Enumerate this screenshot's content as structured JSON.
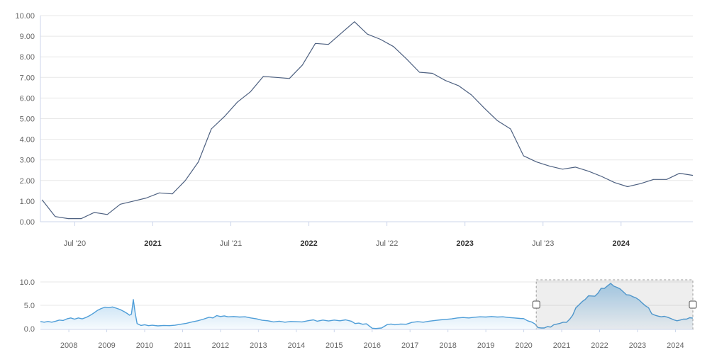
{
  "chart_data": [
    {
      "id": "main",
      "type": "line",
      "title": "",
      "line_color": "#4d6080",
      "line_width": 1.2,
      "grid": true,
      "grid_color": "#e7e7e7",
      "axis_color": "#ccd6eb",
      "label_color": "#666666",
      "label_bold_color": "#333333",
      "ylim": [
        0,
        10
      ],
      "xlim": [
        2020.28,
        2024.46
      ],
      "y_ticks": [
        {
          "v": 0,
          "label": "0.00"
        },
        {
          "v": 1,
          "label": "1.00"
        },
        {
          "v": 2,
          "label": "2.00"
        },
        {
          "v": 3,
          "label": "3.00"
        },
        {
          "v": 4,
          "label": "4.00"
        },
        {
          "v": 5,
          "label": "5.00"
        },
        {
          "v": 6,
          "label": "6.00"
        },
        {
          "v": 7,
          "label": "7.00"
        },
        {
          "v": 8,
          "label": "8.00"
        },
        {
          "v": 9,
          "label": "9.00"
        },
        {
          "v": 10,
          "label": "10.00"
        }
      ],
      "x_ticks": [
        {
          "x": 2020.5,
          "label": "Jul '20",
          "bold": false
        },
        {
          "x": 2021.0,
          "label": "2021",
          "bold": true
        },
        {
          "x": 2021.5,
          "label": "Jul '21",
          "bold": false
        },
        {
          "x": 2022.0,
          "label": "2022",
          "bold": true
        },
        {
          "x": 2022.5,
          "label": "Jul '22",
          "bold": false
        },
        {
          "x": 2023.0,
          "label": "2023",
          "bold": true
        },
        {
          "x": 2023.5,
          "label": "Jul '23",
          "bold": false
        },
        {
          "x": 2024.0,
          "label": "2024",
          "bold": true
        }
      ],
      "x_start": 2020.2917,
      "x_step": 0.083333,
      "values": [
        1.05,
        0.25,
        0.15,
        0.15,
        0.45,
        0.35,
        0.85,
        1.0,
        1.15,
        1.4,
        1.35,
        2.0,
        2.9,
        4.5,
        5.1,
        5.8,
        6.3,
        7.05,
        7.0,
        6.95,
        7.6,
        8.65,
        8.6,
        9.15,
        9.7,
        9.1,
        8.85,
        8.5,
        7.9,
        7.25,
        7.2,
        6.85,
        6.6,
        6.15,
        5.5,
        4.9,
        4.5,
        3.2,
        2.9,
        2.7,
        2.55,
        2.65,
        2.45,
        2.2,
        1.9,
        1.7,
        1.85,
        2.05,
        2.05,
        2.35,
        2.25
      ]
    },
    {
      "id": "navigator",
      "type": "area",
      "line_color": "#4f9ed8",
      "line_width": 1.4,
      "fill_top": "#a9d1ee",
      "fill_bottom": "#f7fbfe",
      "grid_color": "#e7e7e7",
      "axis_color": "#ccd6eb",
      "label_color": "#666666",
      "ylim": [
        0,
        10
      ],
      "xlim": [
        2007.25,
        2024.46
      ],
      "y_ticks": [
        {
          "v": 0,
          "label": "0.0"
        },
        {
          "v": 5,
          "label": "5.0"
        },
        {
          "v": 10,
          "label": "10.0"
        }
      ],
      "x_ticks": [
        {
          "x": 2008,
          "label": "2008"
        },
        {
          "x": 2009,
          "label": "2009"
        },
        {
          "x": 2010,
          "label": "2010"
        },
        {
          "x": 2011,
          "label": "2011"
        },
        {
          "x": 2012,
          "label": "2012"
        },
        {
          "x": 2013,
          "label": "2013"
        },
        {
          "x": 2014,
          "label": "2014"
        },
        {
          "x": 2015,
          "label": "2015"
        },
        {
          "x": 2016,
          "label": "2016"
        },
        {
          "x": 2017,
          "label": "2017"
        },
        {
          "x": 2018,
          "label": "2018"
        },
        {
          "x": 2019,
          "label": "2019"
        },
        {
          "x": 2020,
          "label": "2020"
        },
        {
          "x": 2021,
          "label": "2021"
        },
        {
          "x": 2022,
          "label": "2022"
        },
        {
          "x": 2023,
          "label": "2023"
        },
        {
          "x": 2024,
          "label": "2024"
        }
      ],
      "points_pre": [
        [
          2007.25,
          1.55
        ],
        [
          2007.35,
          1.4
        ],
        [
          2007.45,
          1.55
        ],
        [
          2007.55,
          1.4
        ],
        [
          2007.65,
          1.6
        ],
        [
          2007.75,
          1.85
        ],
        [
          2007.85,
          1.75
        ],
        [
          2007.95,
          2.1
        ],
        [
          2008.05,
          2.3
        ],
        [
          2008.15,
          2.05
        ],
        [
          2008.25,
          2.3
        ],
        [
          2008.35,
          2.1
        ],
        [
          2008.45,
          2.4
        ],
        [
          2008.55,
          2.8
        ],
        [
          2008.65,
          3.3
        ],
        [
          2008.75,
          3.9
        ],
        [
          2008.85,
          4.3
        ],
        [
          2008.95,
          4.6
        ],
        [
          2009.05,
          4.5
        ],
        [
          2009.15,
          4.65
        ],
        [
          2009.25,
          4.4
        ],
        [
          2009.35,
          4.1
        ],
        [
          2009.45,
          3.7
        ],
        [
          2009.55,
          3.2
        ],
        [
          2009.6,
          2.9
        ],
        [
          2009.65,
          3.1
        ],
        [
          2009.7,
          6.25
        ],
        [
          2009.75,
          3.4
        ],
        [
          2009.8,
          1.1
        ],
        [
          2009.9,
          0.7
        ],
        [
          2010.0,
          0.85
        ],
        [
          2010.1,
          0.65
        ],
        [
          2010.2,
          0.75
        ],
        [
          2010.35,
          0.6
        ],
        [
          2010.5,
          0.7
        ],
        [
          2010.65,
          0.65
        ],
        [
          2010.8,
          0.75
        ],
        [
          2010.95,
          0.95
        ],
        [
          2011.1,
          1.15
        ],
        [
          2011.25,
          1.45
        ],
        [
          2011.4,
          1.7
        ],
        [
          2011.55,
          2.05
        ],
        [
          2011.7,
          2.45
        ],
        [
          2011.8,
          2.3
        ],
        [
          2011.9,
          2.8
        ],
        [
          2012.0,
          2.6
        ],
        [
          2012.1,
          2.75
        ],
        [
          2012.2,
          2.55
        ],
        [
          2012.35,
          2.6
        ],
        [
          2012.5,
          2.5
        ],
        [
          2012.65,
          2.55
        ],
        [
          2012.8,
          2.3
        ],
        [
          2012.95,
          2.1
        ],
        [
          2013.1,
          1.8
        ],
        [
          2013.25,
          1.7
        ],
        [
          2013.4,
          1.45
        ],
        [
          2013.55,
          1.6
        ],
        [
          2013.7,
          1.4
        ],
        [
          2013.85,
          1.55
        ],
        [
          2014.0,
          1.5
        ],
        [
          2014.15,
          1.45
        ],
        [
          2014.3,
          1.7
        ],
        [
          2014.45,
          1.9
        ],
        [
          2014.55,
          1.6
        ],
        [
          2014.7,
          1.85
        ],
        [
          2014.85,
          1.65
        ],
        [
          2015.0,
          1.85
        ],
        [
          2015.15,
          1.7
        ],
        [
          2015.3,
          1.9
        ],
        [
          2015.45,
          1.6
        ],
        [
          2015.55,
          1.1
        ],
        [
          2015.65,
          1.2
        ],
        [
          2015.75,
          0.95
        ],
        [
          2015.85,
          1.05
        ],
        [
          2016.0,
          0.1
        ],
        [
          2016.1,
          0.05
        ],
        [
          2016.25,
          0.15
        ],
        [
          2016.4,
          0.9
        ],
        [
          2016.5,
          1.0
        ],
        [
          2016.6,
          0.85
        ],
        [
          2016.75,
          1.0
        ],
        [
          2016.9,
          0.95
        ],
        [
          2017.05,
          1.35
        ],
        [
          2017.2,
          1.5
        ],
        [
          2017.35,
          1.4
        ],
        [
          2017.5,
          1.6
        ],
        [
          2017.65,
          1.75
        ],
        [
          2017.8,
          1.9
        ],
        [
          2017.95,
          2.0
        ],
        [
          2018.1,
          2.1
        ],
        [
          2018.25,
          2.3
        ],
        [
          2018.4,
          2.4
        ],
        [
          2018.55,
          2.3
        ],
        [
          2018.7,
          2.45
        ],
        [
          2018.85,
          2.55
        ],
        [
          2019.0,
          2.5
        ],
        [
          2019.15,
          2.6
        ],
        [
          2019.3,
          2.5
        ],
        [
          2019.45,
          2.55
        ],
        [
          2019.6,
          2.4
        ],
        [
          2019.75,
          2.3
        ],
        [
          2019.9,
          2.2
        ],
        [
          2020.0,
          2.15
        ],
        [
          2020.1,
          1.7
        ],
        [
          2020.2,
          1.45
        ]
      ],
      "selection": {
        "from": 2020.33,
        "to": 2024.46,
        "mask_fill": "rgba(90,90,90,0.10)",
        "border_color": "#9a9a9a",
        "handle_fill": "#ffffff",
        "handle_border": "#6f6f6f"
      }
    }
  ]
}
